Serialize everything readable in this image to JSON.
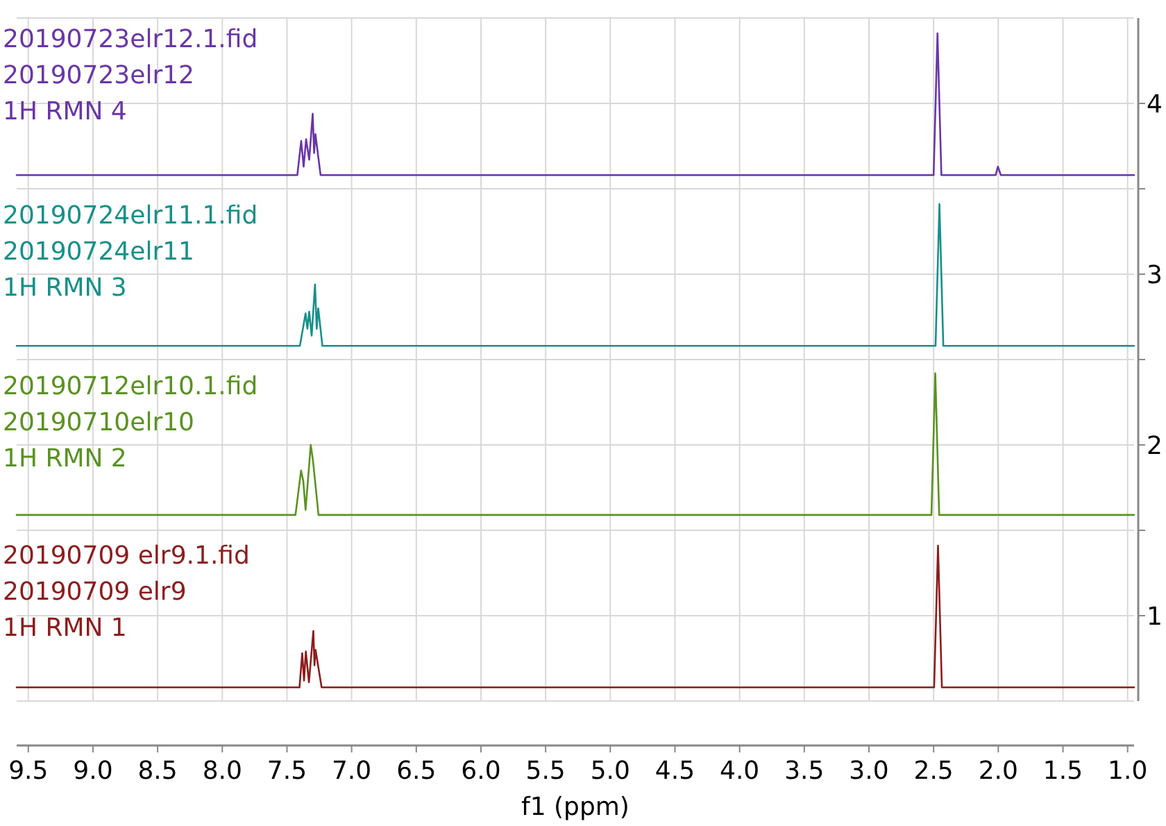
{
  "chart_data": {
    "type": "line",
    "xlabel": "f1 (ppm)",
    "xlim": [
      9.59,
      0.95
    ],
    "xticks": [
      9.5,
      {
        "value": 9.0,
        "label": "9.0"
      },
      8.5,
      {
        "value": 8.0,
        "label": "8.0"
      },
      7.5,
      {
        "value": 7.0,
        "label": "7.0"
      },
      6.5,
      {
        "value": 6.0,
        "label": "6.0"
      },
      5.5,
      {
        "value": 5.0,
        "label": "5.0"
      },
      4.5,
      {
        "value": 4.0,
        "label": "4.0"
      },
      3.5,
      {
        "value": 3.0,
        "label": "3.0"
      },
      2.5,
      {
        "value": 2.0,
        "label": "2.0"
      },
      1.5,
      {
        "value": 1.0,
        "label": "1.0"
      }
    ],
    "ylim": [
      0.5,
      4.5
    ],
    "yticks": [
      1,
      {
        "value": 1.5,
        "label": null
      },
      2,
      {
        "value": 2.5,
        "label": null
      },
      3,
      {
        "value": 3.5,
        "label": null
      },
      4
    ],
    "grid": true,
    "series": [
      {
        "name": "20190723elr12.1.fid\n20190723elr12\n1H RMN 4",
        "color": "#6a35a8",
        "x": [
          9.59,
          7.42,
          7.39,
          7.371,
          7.352,
          7.328,
          7.301,
          7.29,
          7.28,
          7.24,
          2.5,
          2.47,
          2.44,
          2.02,
          2.003,
          1.98,
          0.95
        ],
        "values": [
          3.58,
          3.58,
          3.78,
          3.63,
          3.79,
          3.67,
          3.94,
          3.71,
          3.82,
          3.58,
          3.58,
          4.41,
          3.58,
          3.58,
          3.63,
          3.58,
          3.58
        ]
      },
      {
        "name": "20190724elr11.1.fid\n20190724elr11\n1H RMN 3",
        "color": "#16908a",
        "x": [
          9.59,
          7.4,
          7.356,
          7.342,
          7.328,
          7.309,
          7.283,
          7.27,
          7.258,
          7.226,
          2.485,
          2.455,
          2.425,
          0.95
        ],
        "values": [
          2.58,
          2.58,
          2.77,
          2.68,
          2.78,
          2.64,
          2.94,
          2.68,
          2.8,
          2.58,
          2.58,
          3.41,
          2.58,
          2.58
        ]
      },
      {
        "name": "20190712elr10.1.fid\n20190710elr10\n1H RMN 2",
        "color": "#5a9222",
        "x": [
          9.59,
          7.434,
          7.391,
          7.374,
          7.356,
          7.316,
          7.299,
          7.256,
          2.517,
          2.487,
          2.457,
          0.95
        ],
        "values": [
          1.59,
          1.59,
          1.85,
          1.79,
          1.62,
          2.0,
          1.91,
          1.59,
          1.59,
          2.42,
          1.59,
          1.59
        ]
      },
      {
        "name": "20190709 elr9.1.fid\n20190709 elr9\n1H RMN 1",
        "color": "#8e1c1c",
        "x": [
          9.59,
          7.403,
          7.382,
          7.368,
          7.354,
          7.33,
          7.296,
          7.287,
          7.279,
          7.232,
          2.496,
          2.466,
          2.436,
          0.95
        ],
        "values": [
          0.58,
          0.58,
          0.78,
          0.62,
          0.79,
          0.61,
          0.91,
          0.71,
          0.8,
          0.58,
          0.58,
          1.41,
          0.58,
          0.58
        ]
      }
    ]
  }
}
